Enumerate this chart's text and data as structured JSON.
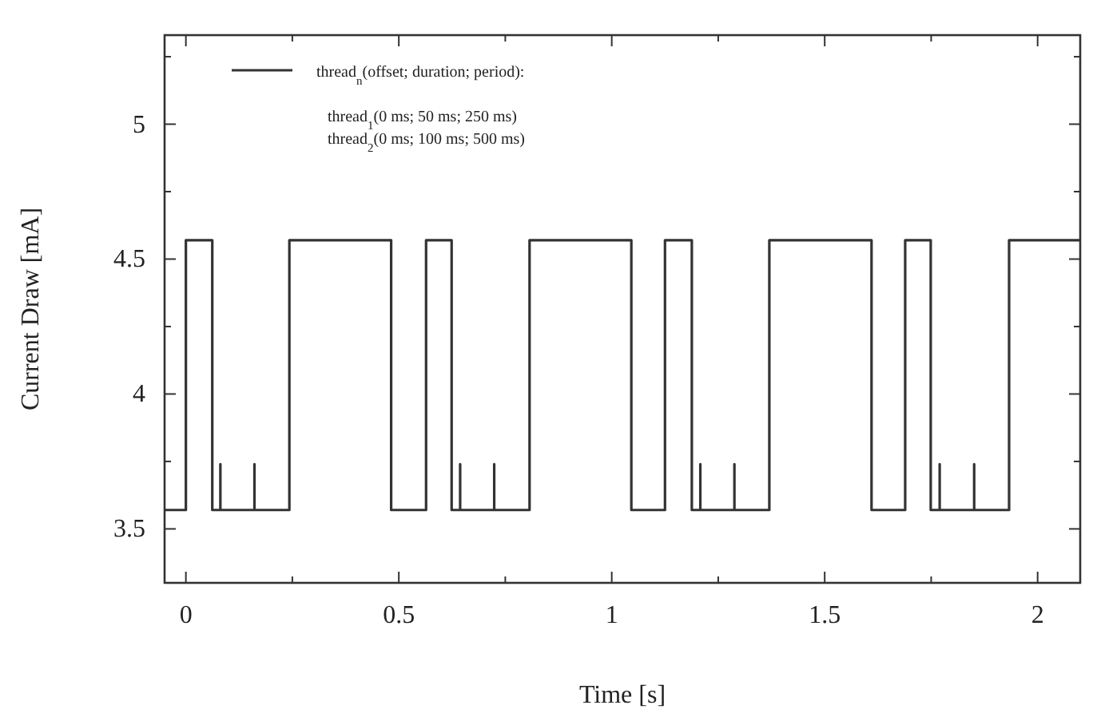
{
  "chart_data": {
    "type": "line",
    "xlabel": "Time [s]",
    "ylabel": "Current Draw [mA]",
    "xlim": [
      -0.05,
      2.1
    ],
    "ylim": [
      3.3,
      5.33
    ],
    "xticks": [
      0,
      {
        "value": 0.25,
        "label": null
      },
      0.5,
      {
        "value": 0.75,
        "label": null
      },
      1,
      {
        "value": 1.25,
        "label": null
      },
      1.5,
      {
        "value": 1.75,
        "label": null
      },
      2
    ],
    "yticks": [
      3.5,
      {
        "value": 3.75,
        "label": null
      },
      4,
      {
        "value": 4.25,
        "label": null
      },
      4.5,
      {
        "value": 4.75,
        "label": null
      },
      5,
      {
        "value": 5.25,
        "label": null
      }
    ],
    "grid": false,
    "legend": "top left",
    "marker": "none",
    "line_style": "solid",
    "annotations": [
      "thread$_{1}$(0 ms; 50 ms; 250 ms)",
      "thread$_{2}$(0 ms; 100 ms; 500 ms)"
    ],
    "series": [
      {
        "name": "thread$_{n}$(offset; duration; period):",
        "color": "#333333",
        "x": [
          -0.05,
          0,
          0,
          0.062,
          0.062,
          0.081,
          0.081,
          0.081,
          0.161,
          0.161,
          0.161,
          0.243,
          0.243,
          0.482,
          0.482,
          0.564,
          0.564,
          0.624,
          0.624,
          0.644,
          0.644,
          0.644,
          0.724,
          0.724,
          0.724,
          0.807,
          0.807,
          1.046,
          1.046,
          1.125,
          1.125,
          1.188,
          1.188,
          1.208,
          1.208,
          1.208,
          1.288,
          1.288,
          1.288,
          1.37,
          1.37,
          1.61,
          1.61,
          1.689,
          1.689,
          1.749,
          1.749,
          1.77,
          1.77,
          1.77,
          1.851,
          1.851,
          1.851,
          1.933,
          1.933,
          2.1
        ],
        "values": [
          3.57,
          3.57,
          4.57,
          4.57,
          3.57,
          3.57,
          3.74,
          3.57,
          3.57,
          3.74,
          3.57,
          3.57,
          4.57,
          4.57,
          3.57,
          3.57,
          4.57,
          4.57,
          3.57,
          3.57,
          3.74,
          3.57,
          3.57,
          3.74,
          3.57,
          3.57,
          4.57,
          4.57,
          3.57,
          3.57,
          4.57,
          4.57,
          3.57,
          3.57,
          3.74,
          3.57,
          3.57,
          3.74,
          3.57,
          3.57,
          4.57,
          4.57,
          3.57,
          3.57,
          4.57,
          4.57,
          3.57,
          3.57,
          3.74,
          3.57,
          3.57,
          3.74,
          3.57,
          3.57,
          4.57,
          4.57
        ]
      }
    ]
  }
}
